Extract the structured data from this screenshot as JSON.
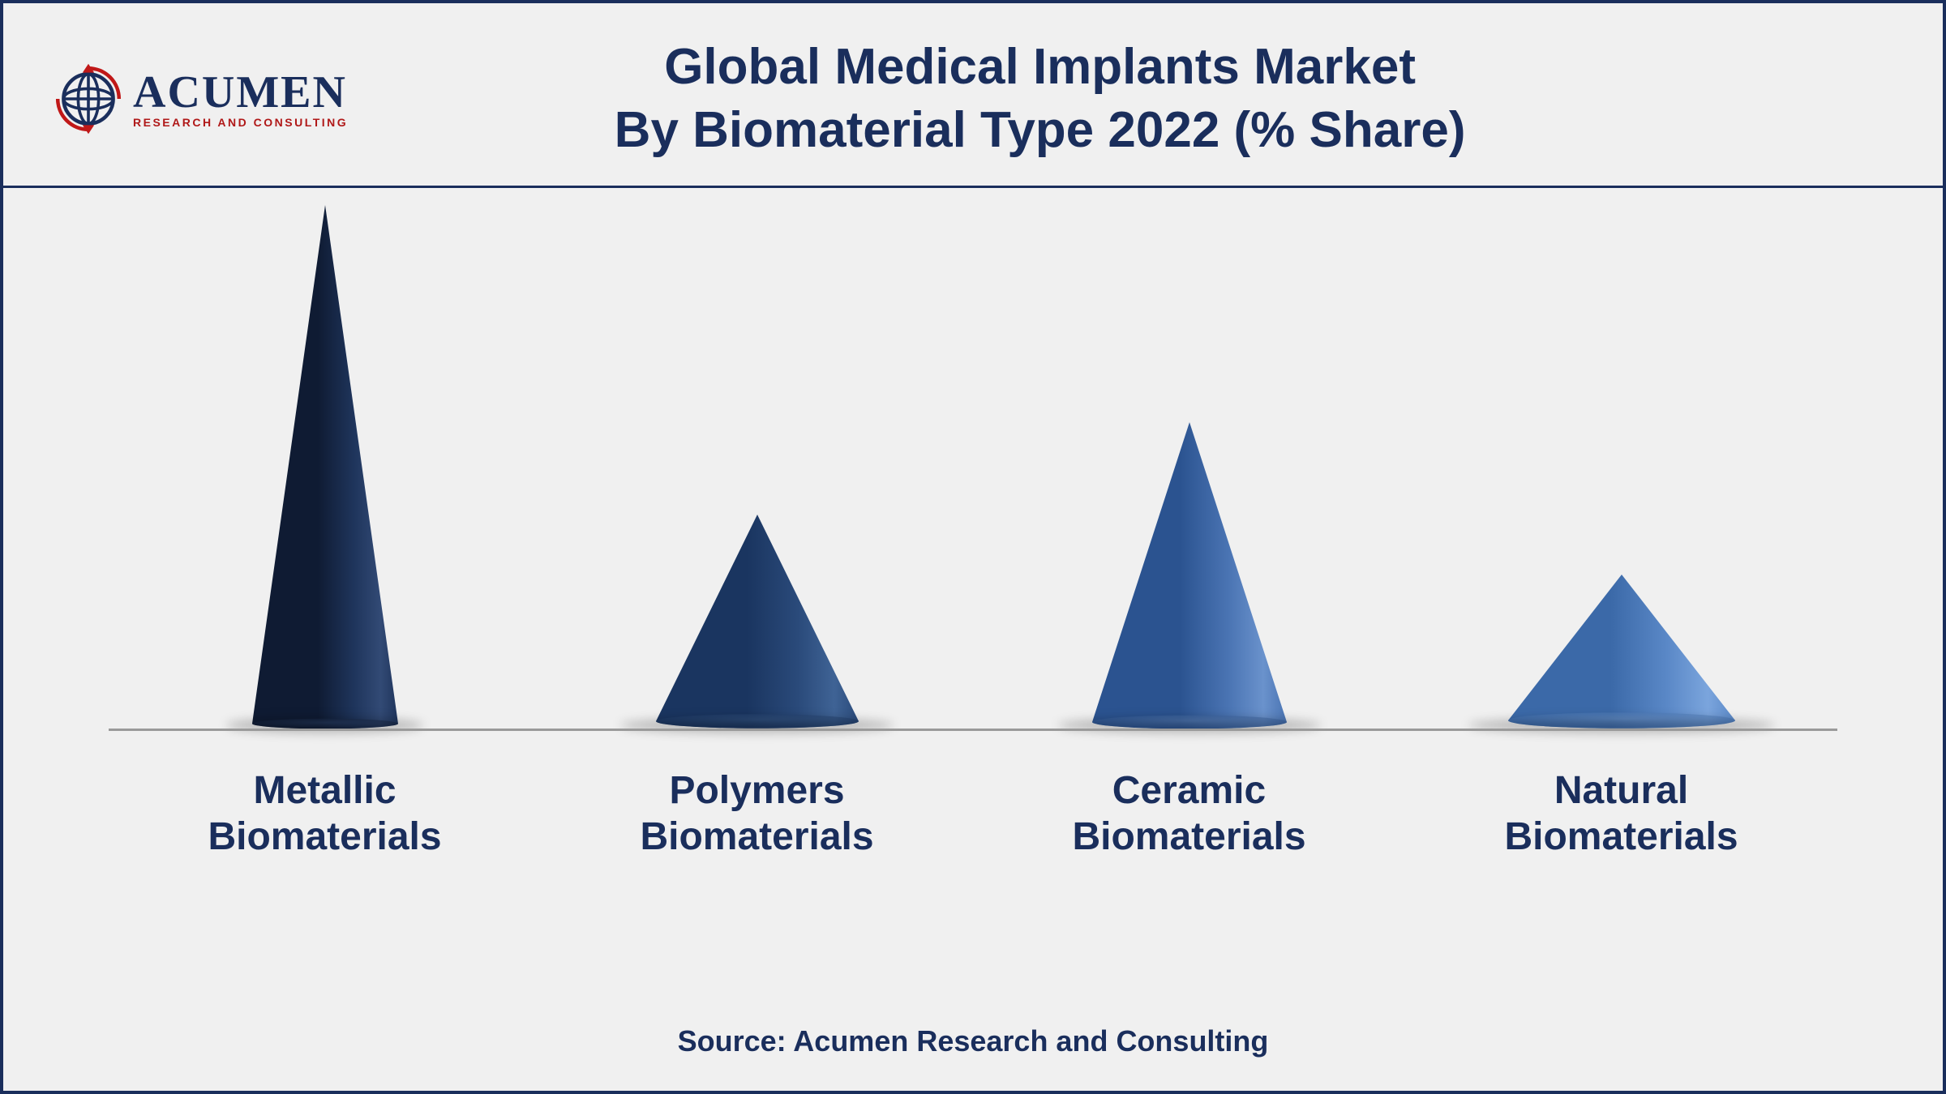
{
  "logo": {
    "main": "ACUMEN",
    "sub": "RESEARCH AND CONSULTING",
    "globe_color": "#1a2e5c",
    "arrow_color": "#c01818",
    "diamond_color": "#c01818"
  },
  "title": {
    "line1": "Global Medical Implants Market",
    "line2": "By Biomaterial Type 2022 (% Share)",
    "color": "#1a2e5c",
    "fontsize": 62
  },
  "chart": {
    "type": "cone",
    "background_color": "#f0f0f0",
    "border_color": "#1a2e5c",
    "baseline_color": "#9a9a9a",
    "label_color": "#1a2e5c",
    "label_fontsize": 48,
    "categories": [
      {
        "label_line1": "Metallic",
        "label_line2": "Biomaterials",
        "value": 100,
        "cone_height": 640,
        "cone_width": 180,
        "fill_dark": "#0f1b33",
        "fill_mid": "#1f355c",
        "fill_light": "#324a75"
      },
      {
        "label_line1": "Polymers",
        "label_line2": "Biomaterials",
        "value": 40,
        "cone_height": 255,
        "cone_width": 250,
        "fill_dark": "#1a3560",
        "fill_mid": "#2a4a7a",
        "fill_light": "#3f6395"
      },
      {
        "label_line1": "Ceramic",
        "label_line2": "Biomaterials",
        "value": 58,
        "cone_height": 370,
        "cone_width": 240,
        "fill_dark": "#2b5390",
        "fill_mid": "#4a74b3",
        "fill_light": "#6a92cc"
      },
      {
        "label_line1": "Natural",
        "label_line2": "Biomaterials",
        "value": 28,
        "cone_height": 180,
        "cone_width": 280,
        "fill_dark": "#3b69a8",
        "fill_mid": "#5a88c7",
        "fill_light": "#7ba5dd"
      }
    ],
    "shadow_color": "rgba(0,0,0,0.22)"
  },
  "source": {
    "text": "Source: Acumen Research and Consulting",
    "color": "#1a2e5c",
    "fontsize": 36
  }
}
